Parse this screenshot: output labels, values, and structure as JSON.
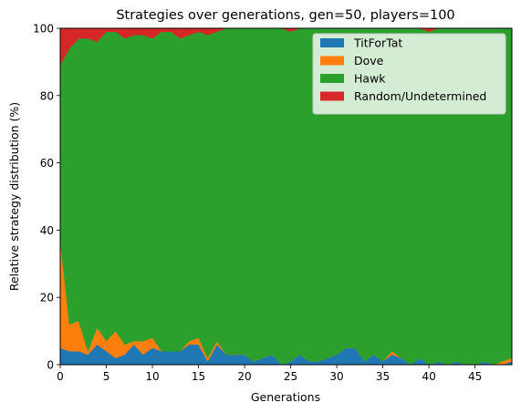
{
  "chart_data": {
    "type": "area",
    "stacked": true,
    "normalized_percent": true,
    "title": "Strategies over generations, gen=50, players=100",
    "xlabel": "Generations",
    "ylabel": "Relative strategy distribution (%)",
    "xlim": [
      0,
      49
    ],
    "ylim": [
      0,
      100
    ],
    "xticks": [
      0,
      5,
      10,
      15,
      20,
      25,
      30,
      35,
      40,
      45
    ],
    "yticks": [
      0,
      20,
      40,
      60,
      80,
      100
    ],
    "grid": false,
    "legend_position": "top-right",
    "x": [
      0,
      1,
      2,
      3,
      4,
      5,
      6,
      7,
      8,
      9,
      10,
      11,
      12,
      13,
      14,
      15,
      16,
      17,
      18,
      19,
      20,
      21,
      22,
      23,
      24,
      25,
      26,
      27,
      28,
      29,
      30,
      31,
      32,
      33,
      34,
      35,
      36,
      37,
      38,
      39,
      40,
      41,
      42,
      43,
      44,
      45,
      46,
      47,
      48,
      49
    ],
    "series": [
      {
        "name": "TitForTat",
        "color": "#1f77b4",
        "values": [
          5,
          4,
          4,
          3,
          6,
          4,
          2,
          3,
          6,
          3,
          5,
          4,
          4,
          4,
          6,
          6,
          1,
          6,
          3,
          3,
          3,
          1,
          2,
          3,
          0,
          1,
          3,
          1,
          1,
          2,
          3,
          5,
          5,
          1,
          3,
          1,
          3,
          2,
          0,
          2,
          0,
          1,
          0,
          1,
          0,
          0,
          1,
          0,
          0,
          1
        ]
      },
      {
        "name": "Dove",
        "color": "#ff7f0e",
        "values": [
          32,
          8,
          9,
          1,
          5,
          3,
          8,
          3,
          1,
          4,
          3,
          0,
          0,
          0,
          1,
          2,
          1,
          1,
          0,
          0,
          0,
          0,
          0,
          0,
          0,
          0,
          0,
          0,
          0,
          0,
          0,
          0,
          0,
          0,
          0,
          0,
          1,
          0,
          0,
          0,
          0,
          0,
          0,
          0,
          0,
          0,
          0,
          0,
          1,
          1
        ]
      },
      {
        "name": "Hawk",
        "color": "#2ca02c",
        "values": [
          52,
          82,
          84,
          93,
          85,
          92,
          89,
          91,
          91,
          91,
          89,
          95,
          95,
          93,
          91,
          91,
          96,
          92,
          97,
          97,
          97,
          99,
          98,
          97,
          100,
          98,
          97,
          99,
          99,
          98,
          97,
          95,
          95,
          99,
          97,
          99,
          96,
          98,
          100,
          98,
          99,
          99,
          100,
          99,
          100,
          100,
          99,
          100,
          99,
          98
        ]
      },
      {
        "name": "Random/Undetermined",
        "color": "#d62728",
        "values": [
          11,
          6,
          3,
          3,
          4,
          1,
          1,
          3,
          2,
          2,
          3,
          1,
          1,
          3,
          2,
          1,
          2,
          1,
          0,
          0,
          0,
          0,
          0,
          0,
          0,
          1,
          0,
          0,
          0,
          0,
          0,
          0,
          0,
          0,
          0,
          0,
          0,
          0,
          0,
          0,
          1,
          0,
          0,
          0,
          0,
          0,
          0,
          0,
          0,
          0
        ]
      }
    ]
  }
}
